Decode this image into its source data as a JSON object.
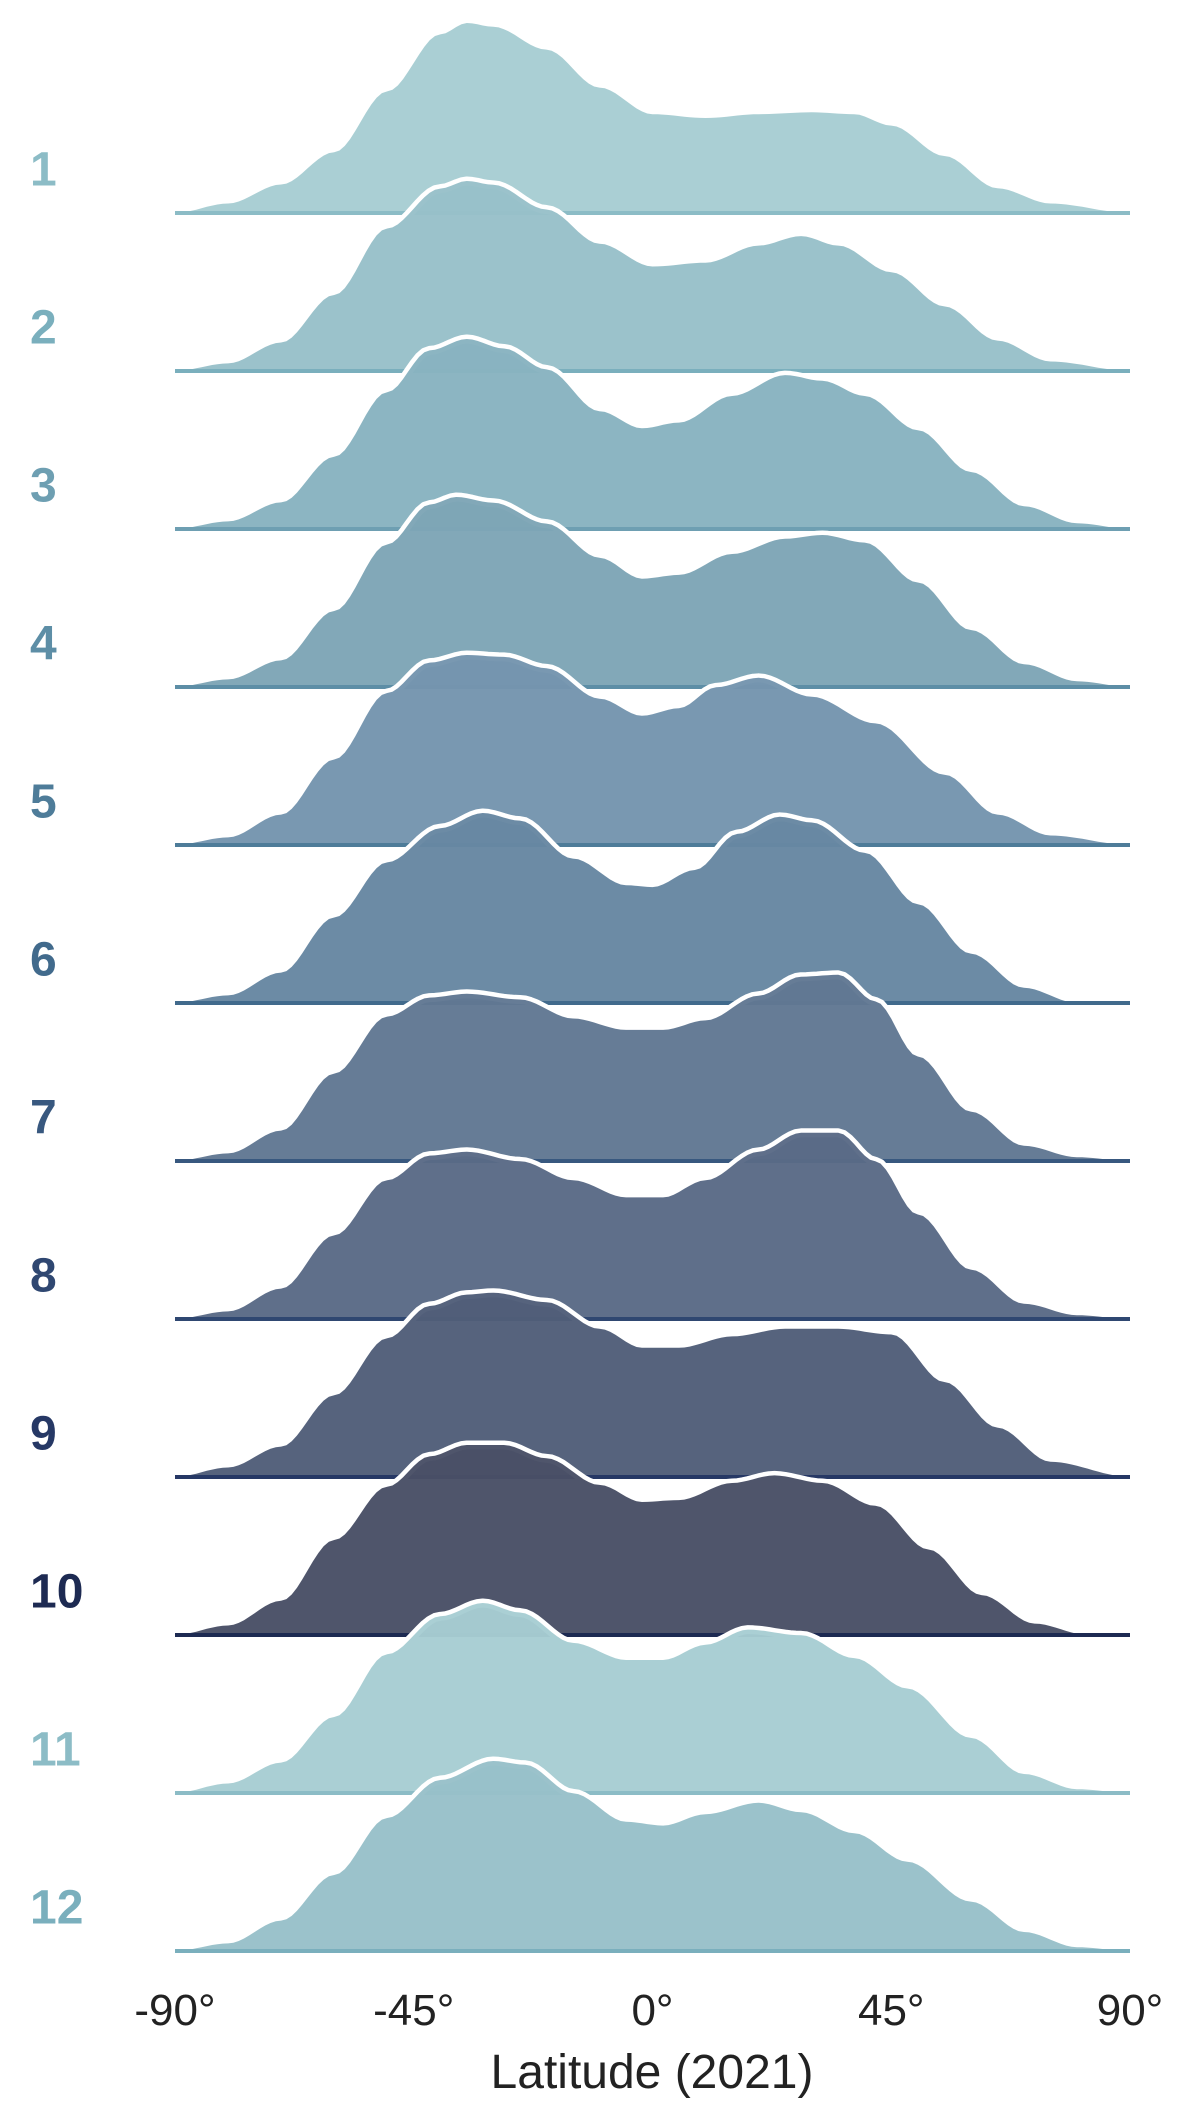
{
  "chart_data": {
    "type": "ridgeline",
    "xlabel": "Latitude (2021)",
    "x_ticks": [
      "-90°",
      "-45°",
      "0°",
      "45°",
      "90°"
    ],
    "x_tick_values": [
      -90,
      -45,
      0,
      45,
      90
    ],
    "xlim": [
      -90,
      90
    ],
    "grid": false,
    "legend": "none",
    "series": [
      {
        "name": "1",
        "label_color": "#8cbcc6",
        "fill": "#a7cdd3",
        "line": "#8cbcc6",
        "density": [
          [
            -90,
            0.0
          ],
          [
            -80,
            0.05
          ],
          [
            -70,
            0.15
          ],
          [
            -60,
            0.32
          ],
          [
            -50,
            0.64
          ],
          [
            -40,
            0.94
          ],
          [
            -35,
            1.0
          ],
          [
            -30,
            0.98
          ],
          [
            -20,
            0.86
          ],
          [
            -10,
            0.66
          ],
          [
            0,
            0.52
          ],
          [
            10,
            0.5
          ],
          [
            20,
            0.52
          ],
          [
            30,
            0.53
          ],
          [
            38,
            0.52
          ],
          [
            45,
            0.46
          ],
          [
            55,
            0.3
          ],
          [
            65,
            0.13
          ],
          [
            75,
            0.05
          ],
          [
            90,
            0.0
          ]
        ]
      },
      {
        "name": "2",
        "label_color": "#7aafbd",
        "fill": "#98c0c9",
        "line": "#7aafbd",
        "density": [
          [
            -90,
            0.0
          ],
          [
            -80,
            0.04
          ],
          [
            -70,
            0.15
          ],
          [
            -60,
            0.4
          ],
          [
            -50,
            0.75
          ],
          [
            -40,
            0.96
          ],
          [
            -35,
            1.0
          ],
          [
            -30,
            0.98
          ],
          [
            -20,
            0.85
          ],
          [
            -10,
            0.67
          ],
          [
            0,
            0.55
          ],
          [
            10,
            0.57
          ],
          [
            20,
            0.66
          ],
          [
            28,
            0.71
          ],
          [
            35,
            0.66
          ],
          [
            45,
            0.52
          ],
          [
            55,
            0.34
          ],
          [
            65,
            0.16
          ],
          [
            75,
            0.05
          ],
          [
            90,
            0.0
          ]
        ]
      },
      {
        "name": "3",
        "label_color": "#6e9fb2",
        "fill": "#88b3c0",
        "line": "#6e9fb2",
        "density": [
          [
            -90,
            0.0
          ],
          [
            -80,
            0.04
          ],
          [
            -70,
            0.14
          ],
          [
            -60,
            0.38
          ],
          [
            -50,
            0.72
          ],
          [
            -42,
            0.94
          ],
          [
            -35,
            1.0
          ],
          [
            -28,
            0.95
          ],
          [
            -20,
            0.84
          ],
          [
            -10,
            0.62
          ],
          [
            -2,
            0.53
          ],
          [
            5,
            0.56
          ],
          [
            15,
            0.7
          ],
          [
            25,
            0.81
          ],
          [
            32,
            0.78
          ],
          [
            40,
            0.7
          ],
          [
            50,
            0.52
          ],
          [
            60,
            0.3
          ],
          [
            70,
            0.12
          ],
          [
            80,
            0.03
          ],
          [
            90,
            0.0
          ]
        ]
      },
      {
        "name": "4",
        "label_color": "#5d8ea6",
        "fill": "#7ea5b6",
        "line": "#5d8ea6",
        "density": [
          [
            -90,
            0.0
          ],
          [
            -80,
            0.04
          ],
          [
            -70,
            0.14
          ],
          [
            -60,
            0.4
          ],
          [
            -50,
            0.75
          ],
          [
            -42,
            0.96
          ],
          [
            -37,
            1.0
          ],
          [
            -30,
            0.97
          ],
          [
            -20,
            0.86
          ],
          [
            -10,
            0.68
          ],
          [
            -2,
            0.57
          ],
          [
            5,
            0.59
          ],
          [
            15,
            0.7
          ],
          [
            25,
            0.78
          ],
          [
            32,
            0.8
          ],
          [
            40,
            0.76
          ],
          [
            50,
            0.55
          ],
          [
            60,
            0.3
          ],
          [
            70,
            0.12
          ],
          [
            80,
            0.03
          ],
          [
            90,
            0.0
          ]
        ]
      },
      {
        "name": "5",
        "label_color": "#4e7c99",
        "fill": "#7595ae",
        "line": "#4e7c99",
        "density": [
          [
            -90,
            0.0
          ],
          [
            -80,
            0.04
          ],
          [
            -70,
            0.16
          ],
          [
            -60,
            0.45
          ],
          [
            -50,
            0.8
          ],
          [
            -42,
            0.96
          ],
          [
            -35,
            1.0
          ],
          [
            -28,
            0.99
          ],
          [
            -20,
            0.93
          ],
          [
            -10,
            0.77
          ],
          [
            -2,
            0.68
          ],
          [
            5,
            0.72
          ],
          [
            12,
            0.83
          ],
          [
            20,
            0.88
          ],
          [
            30,
            0.78
          ],
          [
            42,
            0.64
          ],
          [
            55,
            0.37
          ],
          [
            65,
            0.16
          ],
          [
            75,
            0.05
          ],
          [
            90,
            0.0
          ]
        ]
      },
      {
        "name": "6",
        "label_color": "#416a8c",
        "fill": "#6787a2",
        "line": "#416a8c",
        "density": [
          [
            -90,
            0.0
          ],
          [
            -80,
            0.04
          ],
          [
            -70,
            0.16
          ],
          [
            -60,
            0.45
          ],
          [
            -50,
            0.74
          ],
          [
            -40,
            0.92
          ],
          [
            -32,
            1.0
          ],
          [
            -25,
            0.96
          ],
          [
            -15,
            0.76
          ],
          [
            -5,
            0.62
          ],
          [
            0,
            0.61
          ],
          [
            8,
            0.7
          ],
          [
            16,
            0.89
          ],
          [
            24,
            0.98
          ],
          [
            30,
            0.95
          ],
          [
            40,
            0.79
          ],
          [
            50,
            0.52
          ],
          [
            60,
            0.26
          ],
          [
            70,
            0.08
          ],
          [
            80,
            0.0
          ],
          [
            90,
            0.0
          ]
        ]
      },
      {
        "name": "7",
        "label_color": "#38587f",
        "fill": "#617893",
        "line": "#38587f",
        "density": [
          [
            -90,
            0.0
          ],
          [
            -80,
            0.04
          ],
          [
            -70,
            0.16
          ],
          [
            -60,
            0.46
          ],
          [
            -50,
            0.76
          ],
          [
            -42,
            0.86
          ],
          [
            -35,
            0.88
          ],
          [
            -25,
            0.85
          ],
          [
            -15,
            0.75
          ],
          [
            -5,
            0.69
          ],
          [
            2,
            0.69
          ],
          [
            10,
            0.74
          ],
          [
            20,
            0.87
          ],
          [
            28,
            0.97
          ],
          [
            35,
            0.98
          ],
          [
            42,
            0.84
          ],
          [
            50,
            0.55
          ],
          [
            60,
            0.26
          ],
          [
            70,
            0.08
          ],
          [
            80,
            0.02
          ],
          [
            90,
            0.0
          ]
        ]
      },
      {
        "name": "8",
        "label_color": "#2f4771",
        "fill": "#5a6a86",
        "line": "#2f4771",
        "density": [
          [
            -90,
            0.0
          ],
          [
            -80,
            0.04
          ],
          [
            -70,
            0.16
          ],
          [
            -60,
            0.44
          ],
          [
            -50,
            0.73
          ],
          [
            -42,
            0.86
          ],
          [
            -35,
            0.88
          ],
          [
            -25,
            0.83
          ],
          [
            -15,
            0.73
          ],
          [
            -5,
            0.64
          ],
          [
            2,
            0.64
          ],
          [
            10,
            0.73
          ],
          [
            20,
            0.88
          ],
          [
            28,
            0.98
          ],
          [
            35,
            0.98
          ],
          [
            42,
            0.83
          ],
          [
            50,
            0.55
          ],
          [
            60,
            0.26
          ],
          [
            70,
            0.08
          ],
          [
            80,
            0.02
          ],
          [
            90,
            0.0
          ]
        ]
      },
      {
        "name": "9",
        "label_color": "#263865",
        "fill": "#515e79",
        "line": "#263865",
        "density": [
          [
            -90,
            0.0
          ],
          [
            -80,
            0.05
          ],
          [
            -70,
            0.16
          ],
          [
            -60,
            0.43
          ],
          [
            -50,
            0.73
          ],
          [
            -42,
            0.9
          ],
          [
            -35,
            0.96
          ],
          [
            -30,
            0.97
          ],
          [
            -20,
            0.92
          ],
          [
            -10,
            0.78
          ],
          [
            -2,
            0.68
          ],
          [
            5,
            0.68
          ],
          [
            15,
            0.74
          ],
          [
            25,
            0.78
          ],
          [
            35,
            0.78
          ],
          [
            45,
            0.75
          ],
          [
            55,
            0.5
          ],
          [
            65,
            0.26
          ],
          [
            75,
            0.08
          ],
          [
            90,
            0.0
          ]
        ]
      },
      {
        "name": "10",
        "label_color": "#1d2a52",
        "fill": "#494f66",
        "line": "#1d2a52",
        "density": [
          [
            -90,
            0.0
          ],
          [
            -80,
            0.05
          ],
          [
            -70,
            0.18
          ],
          [
            -60,
            0.5
          ],
          [
            -50,
            0.78
          ],
          [
            -42,
            0.94
          ],
          [
            -35,
            1.0
          ],
          [
            -28,
            1.0
          ],
          [
            -20,
            0.93
          ],
          [
            -10,
            0.79
          ],
          [
            -2,
            0.7
          ],
          [
            5,
            0.71
          ],
          [
            15,
            0.8
          ],
          [
            23,
            0.84
          ],
          [
            32,
            0.8
          ],
          [
            42,
            0.68
          ],
          [
            52,
            0.45
          ],
          [
            62,
            0.21
          ],
          [
            72,
            0.06
          ],
          [
            82,
            0.0
          ],
          [
            90,
            0.0
          ]
        ]
      },
      {
        "name": "11",
        "label_color": "#8cbcc6",
        "fill": "#a7cdd3",
        "line": "#8cbcc6",
        "density": [
          [
            -90,
            0.0
          ],
          [
            -80,
            0.05
          ],
          [
            -70,
            0.16
          ],
          [
            -60,
            0.4
          ],
          [
            -50,
            0.73
          ],
          [
            -40,
            0.93
          ],
          [
            -32,
            1.0
          ],
          [
            -25,
            0.95
          ],
          [
            -15,
            0.79
          ],
          [
            -5,
            0.7
          ],
          [
            2,
            0.7
          ],
          [
            10,
            0.78
          ],
          [
            18,
            0.86
          ],
          [
            28,
            0.83
          ],
          [
            38,
            0.71
          ],
          [
            48,
            0.55
          ],
          [
            60,
            0.29
          ],
          [
            70,
            0.1
          ],
          [
            80,
            0.02
          ],
          [
            90,
            0.0
          ]
        ]
      },
      {
        "name": "12",
        "label_color": "#7aafbd",
        "fill": "#98c0c9",
        "line": "#7aafbd",
        "density": [
          [
            -90,
            0.0
          ],
          [
            -80,
            0.04
          ],
          [
            -70,
            0.16
          ],
          [
            -60,
            0.4
          ],
          [
            -50,
            0.7
          ],
          [
            -40,
            0.9
          ],
          [
            -30,
            1.0
          ],
          [
            -24,
            0.98
          ],
          [
            -15,
            0.83
          ],
          [
            -5,
            0.68
          ],
          [
            2,
            0.66
          ],
          [
            10,
            0.72
          ],
          [
            20,
            0.78
          ],
          [
            28,
            0.73
          ],
          [
            38,
            0.62
          ],
          [
            48,
            0.47
          ],
          [
            60,
            0.26
          ],
          [
            70,
            0.1
          ],
          [
            80,
            0.02
          ],
          [
            90,
            0.0
          ]
        ]
      }
    ]
  }
}
